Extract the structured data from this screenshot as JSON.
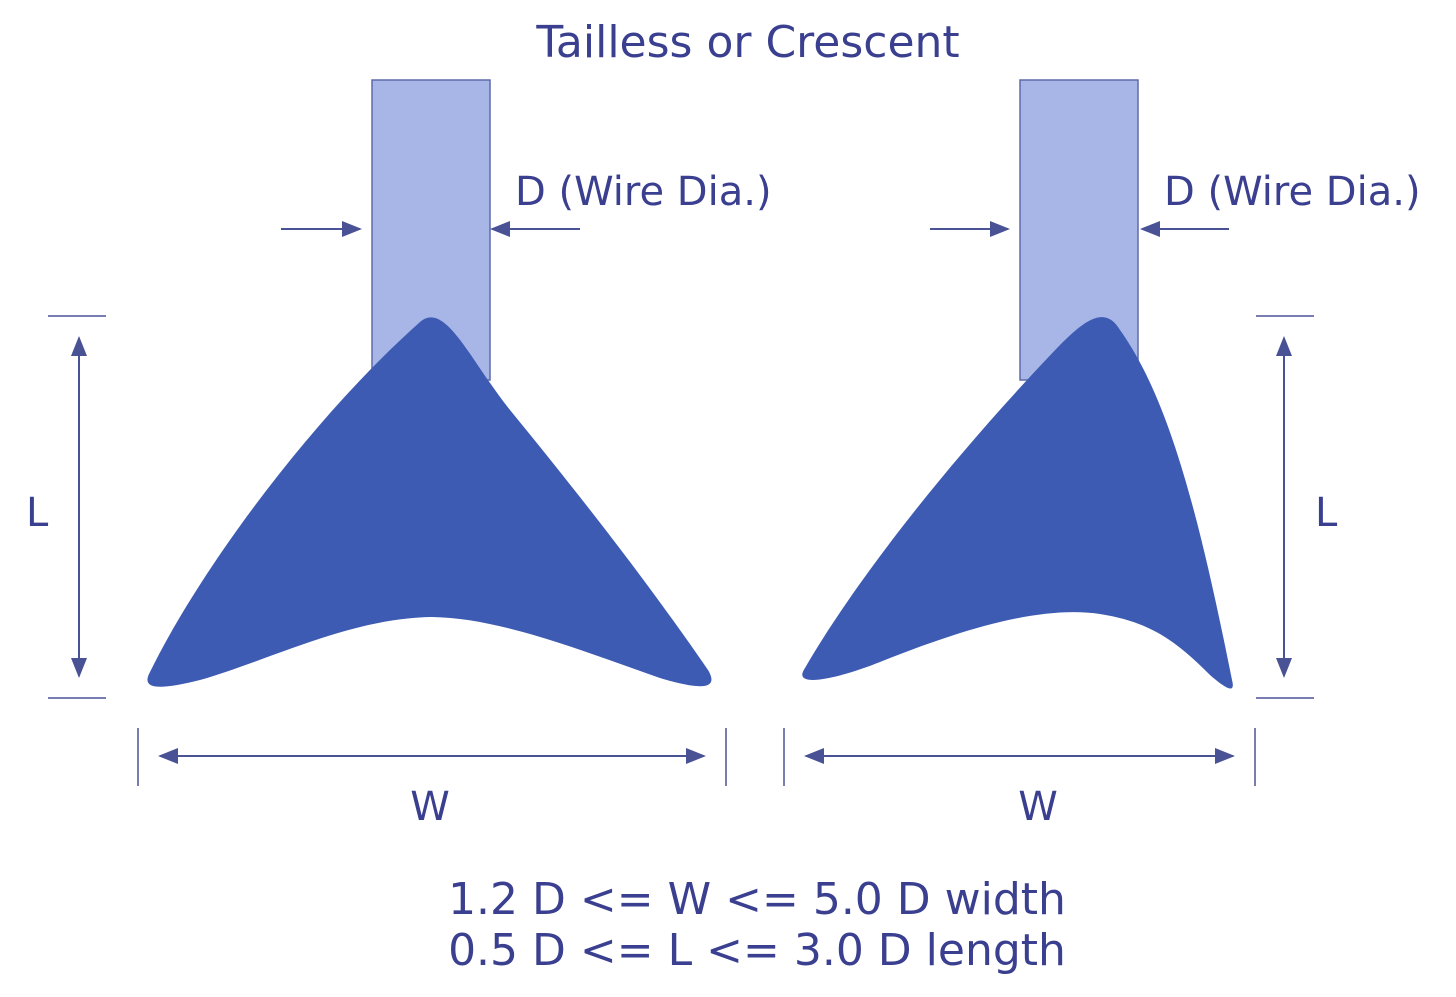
{
  "title": "Tailless or Crescent",
  "colors": {
    "text": "#3a3f8f",
    "wire": "#a7b6e7",
    "wire_stroke": "#5f6aa8",
    "bond": "#3d5bb2",
    "dimension_line": "#4a5296"
  },
  "left_figure": {
    "wire_label": "D (Wire Dia.)",
    "length_label": "L",
    "width_label": "W"
  },
  "right_figure": {
    "wire_label": "D (Wire Dia.)",
    "length_label": "L",
    "width_label": "W"
  },
  "constraints": {
    "width_rule": "1.2 D <= W <= 5.0 D width",
    "length_rule": "0.5 D <= L <= 3.0 D length"
  }
}
